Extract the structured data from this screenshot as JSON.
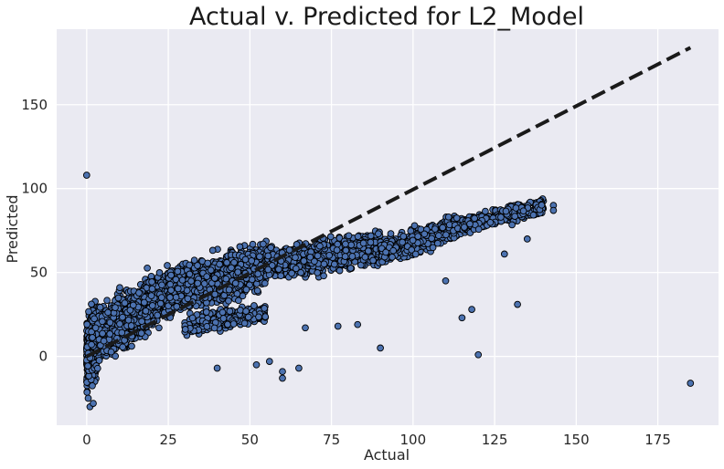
{
  "chart_data": {
    "type": "scatter",
    "title": "Actual v. Predicted for L2_Model",
    "xlabel": "Actual",
    "ylabel": "Predicted",
    "xlim": [
      -9.2,
      193.6
    ],
    "ylim": [
      -41,
      195
    ],
    "xticks": [
      0,
      25,
      50,
      75,
      100,
      125,
      150,
      175
    ],
    "yticks": [
      0,
      50,
      100,
      150
    ],
    "grid": true,
    "background": "#eaeaf2",
    "grid_color": "#ffffff",
    "point_color": "#4c72b0",
    "point_edge_color": "#000000",
    "reference_line": {
      "style": "dashed",
      "color": "#1a1a1a",
      "x": [
        0,
        185
      ],
      "y": [
        0,
        184
      ]
    },
    "notable_points": [
      {
        "x": 0,
        "y": 108
      },
      {
        "x": 185,
        "y": -16
      },
      {
        "x": 120,
        "y": 1
      },
      {
        "x": 132,
        "y": 31
      },
      {
        "x": 143,
        "y": 90
      },
      {
        "x": 143,
        "y": 87
      },
      {
        "x": 135,
        "y": 70
      },
      {
        "x": 110,
        "y": 45
      },
      {
        "x": 118,
        "y": 28
      },
      {
        "x": 115,
        "y": 23
      },
      {
        "x": 128,
        "y": 61
      },
      {
        "x": 90,
        "y": 5
      },
      {
        "x": 83,
        "y": 19
      },
      {
        "x": 77,
        "y": 18
      },
      {
        "x": 67,
        "y": 17
      },
      {
        "x": 60,
        "y": -9
      },
      {
        "x": 60,
        "y": -13
      },
      {
        "x": 65,
        "y": -7
      },
      {
        "x": 52,
        "y": -5
      },
      {
        "x": 56,
        "y": -3
      },
      {
        "x": 40,
        "y": -7
      },
      {
        "x": 1,
        "y": -30
      },
      {
        "x": 2,
        "y": -28
      }
    ],
    "dense_bands": [
      {
        "x": [
          0,
          3
        ],
        "y_center": [
          0,
          10
        ],
        "spread": 42,
        "n": 520
      },
      {
        "x": [
          0,
          25
        ],
        "y_center": [
          8,
          38
        ],
        "spread": 32,
        "n": 1300
      },
      {
        "x": [
          25,
          55
        ],
        "y_center": [
          38,
          55
        ],
        "spread": 28,
        "n": 1100
      },
      {
        "x": [
          55,
          90
        ],
        "y_center": [
          55,
          65
        ],
        "spread": 20,
        "n": 1000
      },
      {
        "x": [
          90,
          115
        ],
        "y_center": [
          62,
          78
        ],
        "spread": 15,
        "n": 550
      },
      {
        "x": [
          115,
          140
        ],
        "y_center": [
          78,
          90
        ],
        "spread": 10,
        "n": 330
      },
      {
        "x": [
          30,
          55
        ],
        "y_center": [
          18,
          26
        ],
        "spread": 12,
        "n": 260
      }
    ]
  }
}
